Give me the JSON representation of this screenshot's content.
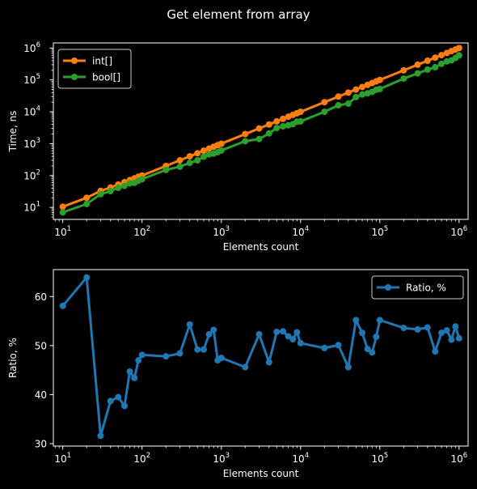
{
  "title": "Get element from array",
  "colors": {
    "background": "#000000",
    "int": "#ff7f0e",
    "bool": "#2ca02c",
    "ratio": "#1f77b4",
    "axis": "#ffffff"
  },
  "chart_data": [
    {
      "type": "line",
      "xscale": "log",
      "yscale": "log",
      "xlabel": "Elements count",
      "ylabel": "Time, ns",
      "xlim": [
        7.6,
        1300000
      ],
      "ylim": [
        4.2,
        1450000
      ],
      "x_ticks": [
        "10^1",
        "10^2",
        "10^3",
        "10^4",
        "10^5",
        "10^6"
      ],
      "y_ticks": [
        "10^1",
        "10^2",
        "10^3",
        "10^4",
        "10^5",
        "10^6"
      ],
      "legend": "top-left",
      "x": [
        10,
        20,
        30,
        40,
        50,
        60,
        70,
        80,
        90,
        100,
        200,
        300,
        400,
        500,
        600,
        700,
        800,
        900,
        1000,
        2000,
        3000,
        4000,
        5000,
        6000,
        7000,
        8000,
        9000,
        10000,
        20000,
        30000,
        40000,
        50000,
        60000,
        70000,
        80000,
        90000,
        100000,
        200000,
        300000,
        400000,
        500000,
        600000,
        700000,
        800000,
        900000,
        1000000
      ],
      "series": [
        {
          "name": "int[]",
          "values": [
            10.5,
            20,
            33,
            42,
            52,
            62,
            72,
            82,
            92,
            100,
            200,
            300,
            400,
            500,
            600,
            700,
            800,
            900,
            1000,
            2000,
            3000,
            4000,
            5000,
            6000,
            7000,
            8000,
            9000,
            10000,
            20000,
            30000,
            40000,
            50000,
            60000,
            70000,
            80000,
            90000,
            100000,
            200000,
            300000,
            400000,
            500000,
            600000,
            700000,
            800000,
            900000,
            1000000
          ]
        },
        {
          "name": "bool[]",
          "values": [
            7,
            12.8,
            26,
            32.5,
            41,
            47.5,
            56.5,
            59,
            69,
            77,
            150,
            190,
            250,
            300,
            390,
            460,
            490,
            540,
            610,
            1200,
            1400,
            2100,
            3100,
            3500,
            3800,
            4100,
            4900,
            5000,
            10000,
            16000,
            18000,
            29000,
            35000,
            38000,
            42000,
            49000,
            52000,
            110000,
            160000,
            210000,
            250000,
            320000,
            380000,
            410000,
            490000,
            590000
          ]
        }
      ]
    },
    {
      "type": "line",
      "xscale": "log",
      "xlabel": "Elements count",
      "ylabel": "Ratio, %",
      "xlim": [
        7.6,
        1300000
      ],
      "ylim": [
        29.5,
        65.5
      ],
      "x_ticks": [
        "10^1",
        "10^2",
        "10^3",
        "10^4",
        "10^5",
        "10^6"
      ],
      "y_ticks": [
        "30",
        "40",
        "50",
        "60"
      ],
      "legend": "top-right",
      "x": [
        10,
        20,
        30,
        40,
        50,
        60,
        70,
        80,
        90,
        100,
        200,
        300,
        400,
        500,
        600,
        700,
        800,
        900,
        1000,
        2000,
        3000,
        4000,
        5000,
        6000,
        7000,
        8000,
        9000,
        10000,
        20000,
        30000,
        40000,
        50000,
        60000,
        70000,
        80000,
        90000,
        100000,
        200000,
        300000,
        400000,
        500000,
        600000,
        700000,
        800000,
        900000,
        1000000
      ],
      "series": [
        {
          "name": "Ratio, %",
          "values": [
            58.1,
            63.9,
            31.6,
            38.7,
            39.5,
            37.7,
            44.7,
            43.4,
            47.0,
            48.1,
            47.8,
            48.4,
            54.3,
            49.2,
            49.2,
            52.3,
            53.2,
            47.0,
            47.5,
            45.6,
            52.3,
            46.6,
            52.8,
            52.9,
            51.9,
            51.3,
            52.7,
            50.5,
            49.5,
            50.1,
            45.6,
            55.2,
            52.6,
            49.3,
            48.6,
            51.8,
            55.2,
            53.6,
            53.3,
            53.7,
            48.8,
            52.6,
            53.1,
            51.2,
            53.9,
            51.5
          ]
        }
      ]
    }
  ]
}
